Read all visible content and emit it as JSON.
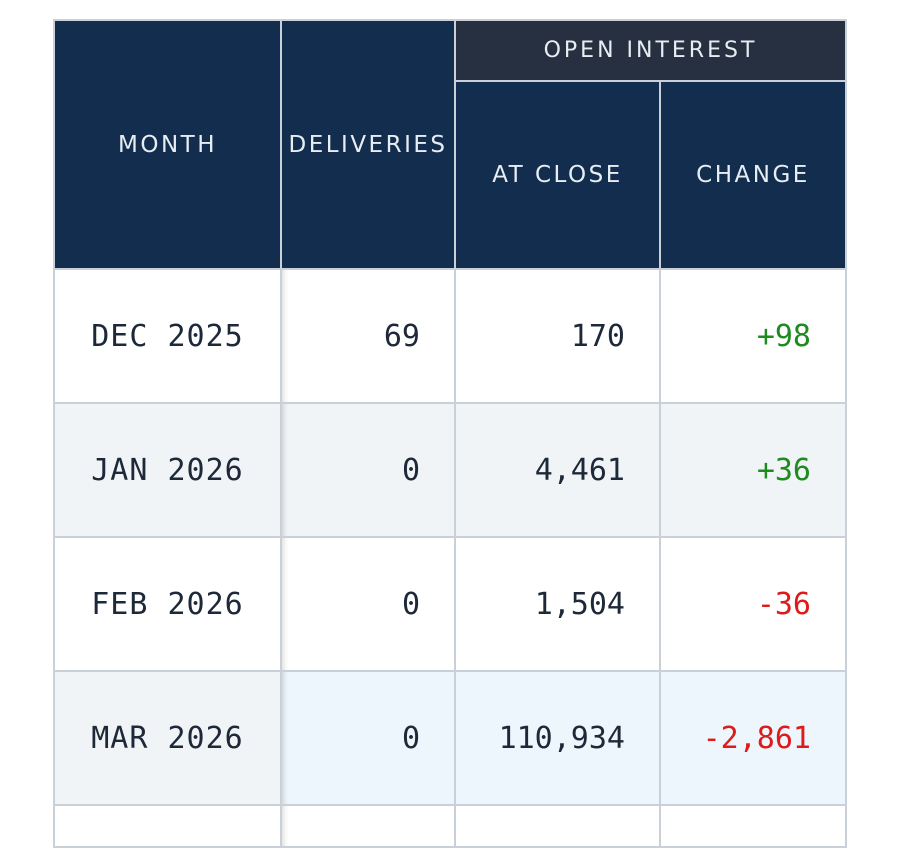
{
  "table": {
    "headers": {
      "month": "MONTH",
      "deliveries": "DELIVERIES",
      "group": "OPEN INTEREST",
      "at_close": "AT CLOSE",
      "change": "CHANGE"
    },
    "rows": [
      {
        "month": "DEC 2025",
        "deliveries": "69",
        "at_close": "170",
        "change": "+98",
        "change_sign": "positive"
      },
      {
        "month": "JAN 2026",
        "deliveries": "0",
        "at_close": "4,461",
        "change": "+36",
        "change_sign": "positive"
      },
      {
        "month": "FEB 2026",
        "deliveries": "0",
        "at_close": "1,504",
        "change": "-36",
        "change_sign": "negative"
      },
      {
        "month": "MAR 2026",
        "deliveries": "0",
        "at_close": "110,934",
        "change": "-2,861",
        "change_sign": "negative"
      }
    ]
  },
  "colors": {
    "header_bg": "#132d4e",
    "group_header_bg": "#263040",
    "positive": "#1f8a1f",
    "negative": "#dd1b1b",
    "highlight_row": "#ecf6fc"
  }
}
